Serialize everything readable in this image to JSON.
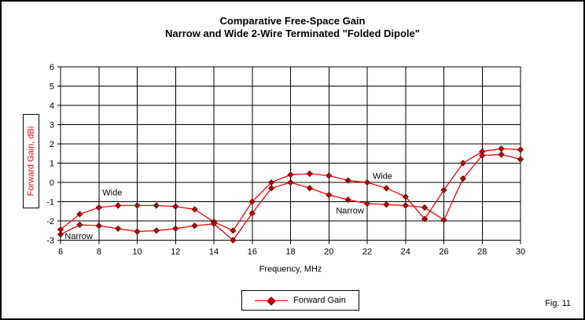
{
  "window": {
    "fig_label": "Fig. 11"
  },
  "chart_data": {
    "type": "line",
    "title_line1": "Comparative Free-Space Gain",
    "title_line2": "Narrow and Wide 2-Wire Terminated \"Folded Dipole\"",
    "xlabel": "Frequency, MHz",
    "ylabel": "Forward Gain, dBi",
    "xlim": [
      6,
      30
    ],
    "ylim": [
      -3,
      6
    ],
    "x_ticks": [
      6,
      8,
      10,
      12,
      14,
      16,
      18,
      20,
      22,
      24,
      26,
      28,
      30
    ],
    "y_ticks": [
      6,
      5,
      4,
      3,
      2,
      1,
      0,
      -1,
      -2,
      -3
    ],
    "grid": true,
    "x": [
      6,
      7,
      8,
      9,
      10,
      11,
      12,
      13,
      14,
      15,
      16,
      17,
      18,
      19,
      20,
      21,
      22,
      23,
      24,
      25,
      26,
      27,
      28,
      29,
      30
    ],
    "series": [
      {
        "name": "Wide",
        "values": [
          -2.45,
          -1.65,
          -1.3,
          -1.2,
          -1.2,
          -1.2,
          -1.25,
          -1.4,
          -2.05,
          -2.5,
          -1.0,
          0.0,
          0.4,
          0.45,
          0.35,
          0.1,
          0.0,
          -0.3,
          -0.75,
          -1.9,
          -0.4,
          1.0,
          1.6,
          1.75,
          1.7
        ]
      },
      {
        "name": "Narrow",
        "values": [
          -2.7,
          -2.2,
          -2.25,
          -2.4,
          -2.55,
          -2.5,
          -2.4,
          -2.25,
          -2.15,
          -3.0,
          -1.6,
          -0.3,
          0.0,
          -0.3,
          -0.65,
          -0.9,
          -1.1,
          -1.15,
          -1.2,
          -1.3,
          -1.95,
          0.2,
          1.4,
          1.45,
          1.2
        ]
      }
    ],
    "legend": {
      "entries": [
        "Forward Gain"
      ],
      "position": "bottom"
    },
    "annotations": [
      {
        "text": "Wide",
        "x": 8.7,
        "y": -0.5
      },
      {
        "text": "Narrow",
        "x": 6.95,
        "y": -2.78
      },
      {
        "text": "Wide",
        "x": 22.8,
        "y": 0.35
      },
      {
        "text": "Narrow",
        "x": 21.1,
        "y": -1.45
      }
    ],
    "colors": {
      "line": "#ff0000",
      "marker_fill": "#c00000",
      "marker_edge": "#700000",
      "axis_title_text": "#ff0000",
      "grid": "#000000",
      "text": "#000000"
    }
  }
}
